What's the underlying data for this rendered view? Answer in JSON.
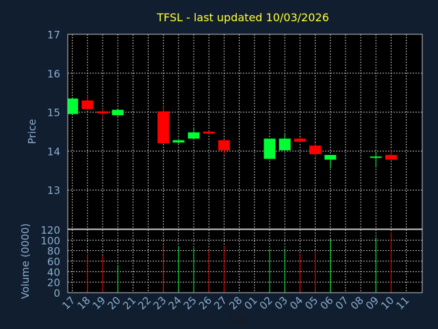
{
  "chart_data": {
    "type": "candlestick",
    "title": "TFSL - last updated 10/03/2026",
    "xlabel": "Day",
    "price_panel": {
      "ylabel": "Price",
      "ylim": [
        12,
        17
      ],
      "yticks": [
        "13",
        "14",
        "15",
        "16",
        "17"
      ],
      "grid": true
    },
    "volume_panel": {
      "ylabel": "Volume (0000)",
      "ylim": [
        0,
        120
      ],
      "yticks": [
        "0",
        "20",
        "40",
        "60",
        "80",
        "100",
        "120"
      ],
      "grid": true
    },
    "categories": [
      "17",
      "18",
      "19",
      "20",
      "21",
      "22",
      "23",
      "24",
      "25",
      "26",
      "27",
      "28",
      "01",
      "02",
      "03",
      "04",
      "05",
      "06",
      "07",
      "08",
      "09",
      "10",
      "11"
    ],
    "candles": [
      {
        "day": "17",
        "open": 14.95,
        "high": 15.35,
        "low": 14.95,
        "close": 15.35,
        "volume": null
      },
      {
        "day": "18",
        "open": 15.3,
        "high": 15.45,
        "low": 15.05,
        "close": 15.08,
        "volume": 73
      },
      {
        "day": "19",
        "open": 15.02,
        "high": 15.08,
        "low": 14.82,
        "close": 14.97,
        "volume": 70
      },
      {
        "day": "20",
        "open": 14.92,
        "high": 15.08,
        "low": 14.88,
        "close": 15.06,
        "volume": 53
      },
      {
        "day": "21",
        "open": null,
        "high": null,
        "low": null,
        "close": null,
        "volume": null
      },
      {
        "day": "22",
        "open": null,
        "high": null,
        "low": null,
        "close": null,
        "volume": null
      },
      {
        "day": "23",
        "open": 15.02,
        "high": 15.18,
        "low": 14.18,
        "close": 14.2,
        "volume": 90
      },
      {
        "day": "24",
        "open": 14.22,
        "high": 14.28,
        "low": 14.18,
        "close": 14.28,
        "volume": 88
      },
      {
        "day": "25",
        "open": 14.32,
        "high": 14.58,
        "low": 14.3,
        "close": 14.48,
        "volume": 85
      },
      {
        "day": "26",
        "open": 14.5,
        "high": 14.52,
        "low": 14.42,
        "close": 14.45,
        "volume": 82
      },
      {
        "day": "27",
        "open": 14.28,
        "high": 14.28,
        "low": 13.92,
        "close": 14.02,
        "volume": 88
      },
      {
        "day": "28",
        "open": null,
        "high": null,
        "low": null,
        "close": null,
        "volume": null
      },
      {
        "day": "01",
        "open": null,
        "high": null,
        "low": null,
        "close": null,
        "volume": null
      },
      {
        "day": "02",
        "open": 13.8,
        "high": 14.32,
        "low": 13.8,
        "close": 14.32,
        "volume": 83
      },
      {
        "day": "03",
        "open": 14.02,
        "high": 14.44,
        "low": 14.02,
        "close": 14.32,
        "volume": 84
      },
      {
        "day": "04",
        "open": 14.32,
        "high": 14.36,
        "low": 14.22,
        "close": 14.24,
        "volume": 74
      },
      {
        "day": "05",
        "open": 14.14,
        "high": 14.22,
        "low": 13.84,
        "close": 13.92,
        "volume": 80
      },
      {
        "day": "06",
        "open": 13.78,
        "high": 13.9,
        "low": 13.56,
        "close": 13.9,
        "volume": 102
      },
      {
        "day": "07",
        "open": null,
        "high": null,
        "low": null,
        "close": null,
        "volume": null
      },
      {
        "day": "08",
        "open": null,
        "high": null,
        "low": null,
        "close": null,
        "volume": null
      },
      {
        "day": "09",
        "open": 13.84,
        "high": 13.98,
        "low": 13.58,
        "close": 13.86,
        "volume": 105
      },
      {
        "day": "10",
        "open": 13.9,
        "high": 14.04,
        "low": 13.78,
        "close": 13.78,
        "volume": 115
      },
      {
        "day": "11",
        "open": null,
        "high": null,
        "low": null,
        "close": null,
        "volume": null
      }
    ],
    "colors": {
      "background": "#101e30",
      "plot_background": "#000000",
      "up": "#00ff33",
      "down": "#ff0000",
      "title": "#ffff33",
      "axis_text": "#8aaccc",
      "grid": "#c8c8c8"
    }
  }
}
